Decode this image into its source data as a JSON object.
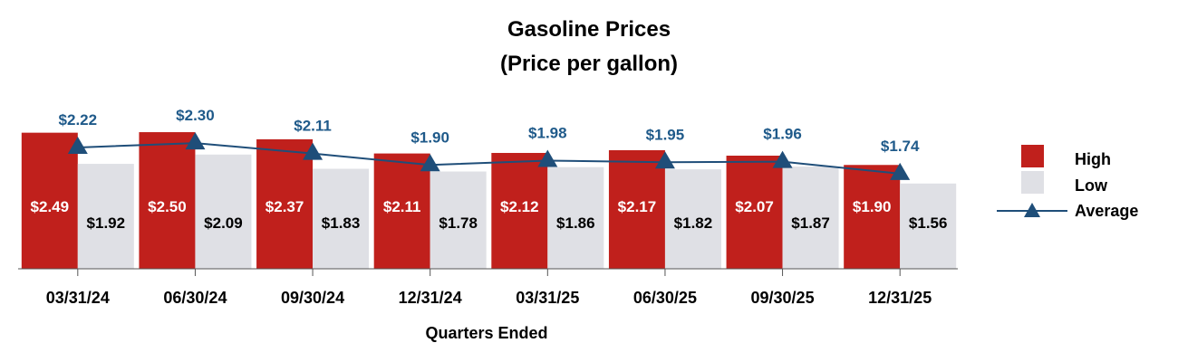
{
  "colors": {
    "high": "#c0201c",
    "low": "#dfe0e5",
    "average": "#1f4e79",
    "avg_label": "#1f5a8a"
  },
  "chart_data": {
    "type": "bar",
    "title": "Gasoline Prices",
    "subtitle": "(Price per gallon)",
    "xlabel": "Quarters Ended",
    "ylabel": "",
    "ylim": [
      0,
      2.6
    ],
    "grid": false,
    "legend_position": "right",
    "categories": [
      "03/31/24",
      "06/30/24",
      "09/30/24",
      "12/31/24",
      "03/31/25",
      "06/30/25",
      "09/30/25",
      "12/31/25"
    ],
    "series": [
      {
        "name": "High",
        "kind": "bar",
        "values": [
          2.49,
          2.5,
          2.37,
          2.11,
          2.12,
          2.17,
          2.07,
          1.9
        ],
        "labels": [
          "$2.49",
          "$2.50",
          "$2.37",
          "$2.11",
          "$2.12",
          "$2.17",
          "$2.07",
          "$1.90"
        ]
      },
      {
        "name": "Low",
        "kind": "bar",
        "values": [
          1.92,
          2.09,
          1.83,
          1.78,
          1.86,
          1.82,
          1.87,
          1.56
        ],
        "labels": [
          "$1.92",
          "$2.09",
          "$1.83",
          "$1.78",
          "$1.86",
          "$1.82",
          "$1.87",
          "$1.56"
        ]
      },
      {
        "name": "Average",
        "kind": "line",
        "values": [
          2.22,
          2.3,
          2.11,
          1.9,
          1.98,
          1.95,
          1.96,
          1.74
        ],
        "labels": [
          "$2.22",
          "$2.30",
          "$2.11",
          "$1.90",
          "$1.98",
          "$1.95",
          "$1.96",
          "$1.74"
        ]
      }
    ]
  }
}
